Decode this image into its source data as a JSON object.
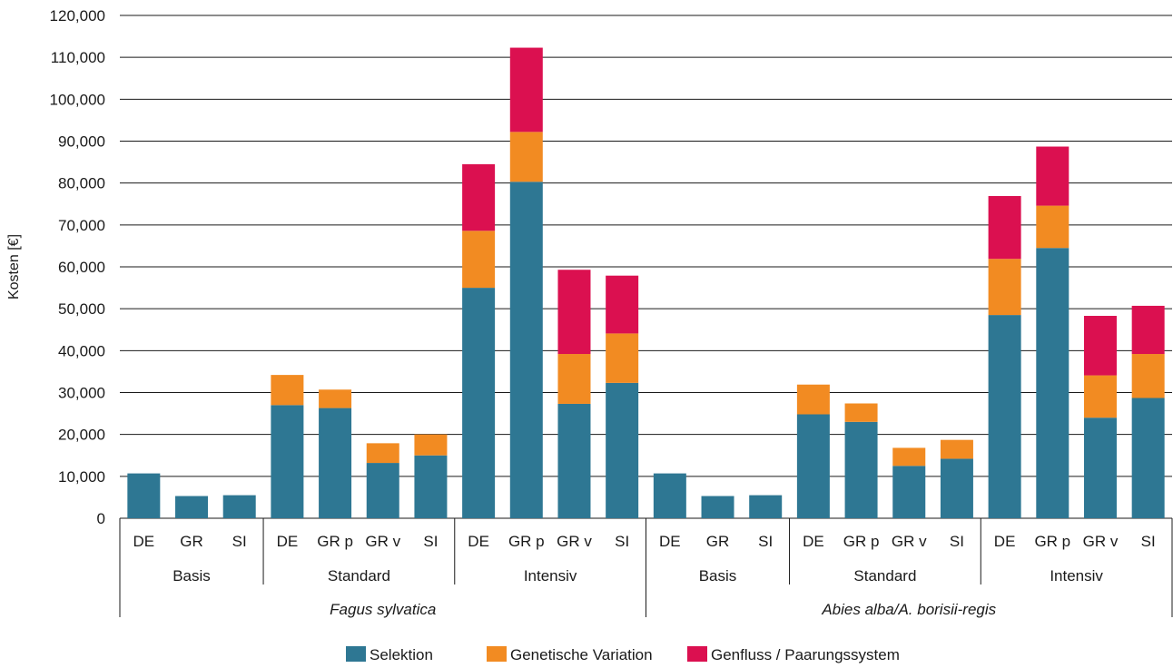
{
  "chart_data": {
    "type": "bar",
    "stacked": true,
    "ylabel": "Kosten [€]",
    "ylim": [
      0,
      120000
    ],
    "yticks": [
      0,
      10000,
      20000,
      30000,
      40000,
      50000,
      60000,
      70000,
      80000,
      90000,
      100000,
      110000,
      120000
    ],
    "ytick_labels": [
      "0",
      "10,000",
      "20,000",
      "30,000",
      "40,000",
      "50,000",
      "60,000",
      "70,000",
      "80,000",
      "90,000",
      "100,000",
      "110,000",
      "120,000"
    ],
    "grid": true,
    "legend_position": "bottom",
    "categories": [
      "DE",
      "GR",
      "SI",
      "DE",
      "GR p",
      "GR v",
      "SI",
      "DE",
      "GR p",
      "GR v",
      "SI",
      "DE",
      "GR",
      "SI",
      "DE",
      "GR p",
      "GR v",
      "SI",
      "DE",
      "GR p",
      "GR v",
      "SI"
    ],
    "groups": [
      {
        "label": "Basis",
        "start": 0,
        "end": 2
      },
      {
        "label": "Standard",
        "start": 3,
        "end": 6
      },
      {
        "label": "Intensiv",
        "start": 7,
        "end": 10
      },
      {
        "label": "Basis",
        "start": 11,
        "end": 13
      },
      {
        "label": "Standard",
        "start": 14,
        "end": 17
      },
      {
        "label": "Intensiv",
        "start": 18,
        "end": 21
      }
    ],
    "species": [
      {
        "label": "Fagus sylvatica",
        "start": 0,
        "end": 10
      },
      {
        "label": "Abies alba/A. borisii-regis",
        "start": 11,
        "end": 21
      }
    ],
    "series": [
      {
        "name": "Selektion",
        "color": "#2e7793",
        "values": [
          10700,
          5300,
          5500,
          27000,
          26300,
          13200,
          15000,
          55000,
          80300,
          27300,
          32300,
          10700,
          5300,
          5500,
          24800,
          23000,
          12500,
          14200,
          48500,
          64500,
          24000,
          28700
        ]
      },
      {
        "name": "Genetische Variation",
        "color": "#f28b22",
        "values": [
          0,
          0,
          0,
          7200,
          4400,
          4700,
          5000,
          13600,
          11900,
          11900,
          11800,
          0,
          0,
          0,
          7100,
          4400,
          4300,
          4500,
          13400,
          10100,
          10100,
          10500
        ]
      },
      {
        "name": "Genfluss / Paarungssystem",
        "color": "#db1050",
        "values": [
          0,
          0,
          0,
          0,
          0,
          0,
          0,
          15900,
          20100,
          20100,
          13800,
          0,
          0,
          0,
          0,
          0,
          0,
          0,
          15000,
          14100,
          14200,
          11500
        ]
      }
    ]
  }
}
